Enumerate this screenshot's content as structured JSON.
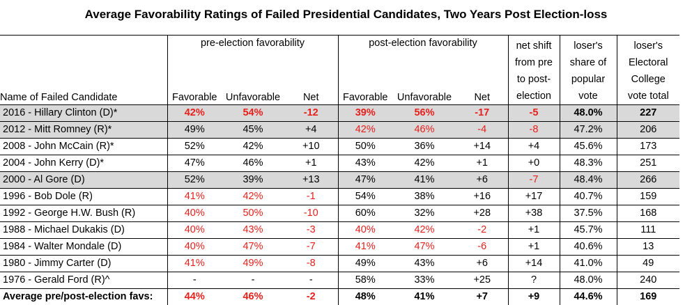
{
  "title": "Average Favorability Ratings of Failed Presidential Candidates, Two Years Post Election-loss",
  "header": {
    "pre_group": "pre-election favorability",
    "post_group": "post-election favorability",
    "net_shift": [
      "net shift",
      "from pre",
      "to post-",
      "election"
    ],
    "popular": [
      "loser's",
      "share of",
      "popular",
      "vote"
    ],
    "electoral": [
      "loser's",
      "Electoral",
      "College",
      "vote total"
    ],
    "name_col": "Name of Failed Candidate",
    "favorable": "Favorable",
    "unfavorable": "Unfavorable",
    "net": "Net"
  },
  "rows": [
    {
      "name": "2016 - Hillary Clinton (D)*",
      "pre_fav": "42%",
      "pre_unfav": "54%",
      "pre_net": "-12",
      "post_fav": "39%",
      "post_unfav": "56%",
      "post_net": "-17",
      "shift": "-5",
      "popular": "48.0%",
      "electoral": "227"
    },
    {
      "name": "2012 - Mitt Romney (R)*",
      "pre_fav": "49%",
      "pre_unfav": "45%",
      "pre_net": "+4",
      "post_fav": "42%",
      "post_unfav": "46%",
      "post_net": "-4",
      "shift": "-8",
      "popular": "47.2%",
      "electoral": "206"
    },
    {
      "name": "2008 - John McCain (R)*",
      "pre_fav": "52%",
      "pre_unfav": "42%",
      "pre_net": "+10",
      "post_fav": "50%",
      "post_unfav": "36%",
      "post_net": "+14",
      "shift": "+4",
      "popular": "45.6%",
      "electoral": "173"
    },
    {
      "name": "2004 - John Kerry (D)*",
      "pre_fav": "47%",
      "pre_unfav": "46%",
      "pre_net": "+1",
      "post_fav": "43%",
      "post_unfav": "42%",
      "post_net": "+1",
      "shift": "+0",
      "popular": "48.3%",
      "electoral": "251"
    },
    {
      "name": "2000 - Al Gore (D)",
      "pre_fav": "52%",
      "pre_unfav": "39%",
      "pre_net": "+13",
      "post_fav": "47%",
      "post_unfav": "41%",
      "post_net": "+6",
      "shift": "-7",
      "popular": "48.4%",
      "electoral": "266"
    },
    {
      "name": "1996 - Bob Dole (R)",
      "pre_fav": "41%",
      "pre_unfav": "42%",
      "pre_net": "-1",
      "post_fav": "54%",
      "post_unfav": "38%",
      "post_net": "+16",
      "shift": "+17",
      "popular": "40.7%",
      "electoral": "159"
    },
    {
      "name": "1992 - George H.W. Bush (R)",
      "pre_fav": "40%",
      "pre_unfav": "50%",
      "pre_net": "-10",
      "post_fav": "60%",
      "post_unfav": "32%",
      "post_net": "+28",
      "shift": "+38",
      "popular": "37.5%",
      "electoral": "168"
    },
    {
      "name": "1988 - Michael Dukakis (D)",
      "pre_fav": "40%",
      "pre_unfav": "43%",
      "pre_net": "-3",
      "post_fav": "40%",
      "post_unfav": "42%",
      "post_net": "-2",
      "shift": "+1",
      "popular": "45.7%",
      "electoral": "111"
    },
    {
      "name": "1984 - Walter Mondale (D)",
      "pre_fav": "40%",
      "pre_unfav": "47%",
      "pre_net": "-7",
      "post_fav": "41%",
      "post_unfav": "47%",
      "post_net": "-6",
      "shift": "+1",
      "popular": "40.6%",
      "electoral": "13"
    },
    {
      "name": "1980 - Jimmy Carter (D)",
      "pre_fav": "41%",
      "pre_unfav": "49%",
      "pre_net": "-8",
      "post_fav": "49%",
      "post_unfav": "43%",
      "post_net": "+6",
      "shift": "+14",
      "popular": "41.0%",
      "electoral": "49"
    },
    {
      "name": "1976 - Gerald Ford (R)^",
      "pre_fav": "-",
      "pre_unfav": "-",
      "pre_net": "-",
      "post_fav": "58%",
      "post_unfav": "33%",
      "post_net": "+25",
      "shift": "?",
      "popular": "48.0%",
      "electoral": "240"
    }
  ],
  "average": {
    "name": "Average pre/post-election favs:",
    "pre_fav": "44%",
    "pre_unfav": "46%",
    "pre_net": "-2",
    "post_fav": "48%",
    "post_unfav": "41%",
    "post_net": "+7",
    "shift": "+9",
    "popular": "44.6%",
    "electoral": "169"
  },
  "colors": {
    "negative": "#e8201c",
    "highlight": "#d9d9d9",
    "text": "#000000"
  }
}
